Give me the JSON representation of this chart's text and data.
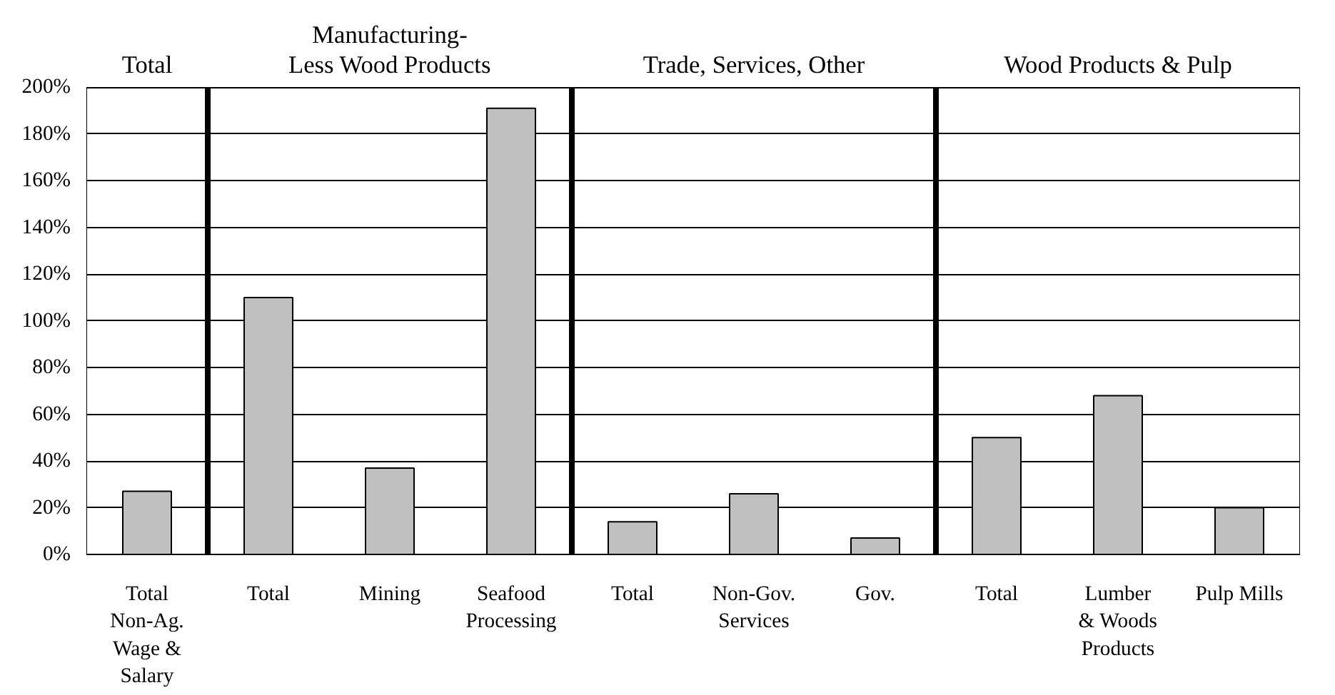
{
  "chart_data": {
    "type": "bar",
    "categories": [
      "Total\nNon-Ag.\nWage &\nSalary",
      "Total",
      "Mining",
      "Seafood\nProcessing",
      "Total",
      "Non-Gov.\nServices",
      "Gov.",
      "Total",
      "Lumber\n& Woods\nProducts",
      "Pulp Mills"
    ],
    "values": [
      27,
      110,
      37,
      191,
      14,
      26,
      7,
      50,
      68,
      20
    ],
    "color": "#c0c0c0",
    "ylim": [
      0,
      200
    ],
    "yticks": [
      {
        "value": 0,
        "label": "0%"
      },
      {
        "value": 20,
        "label": "20%"
      },
      {
        "value": 40,
        "label": "40%"
      },
      {
        "value": 60,
        "label": "60%"
      },
      {
        "value": 80,
        "label": "80%"
      },
      {
        "value": 100,
        "label": "100%"
      },
      {
        "value": 120,
        "label": "120%"
      },
      {
        "value": 140,
        "label": "140%"
      },
      {
        "value": 160,
        "label": "160%"
      },
      {
        "value": 180,
        "label": "180%"
      },
      {
        "value": 200,
        "label": "200%"
      }
    ],
    "grid": "y",
    "annotations": [
      "Total",
      "Manufacturing-\nLess Wood Products",
      "Trade, Services, Other",
      "Wood Products & Pulp"
    ]
  }
}
